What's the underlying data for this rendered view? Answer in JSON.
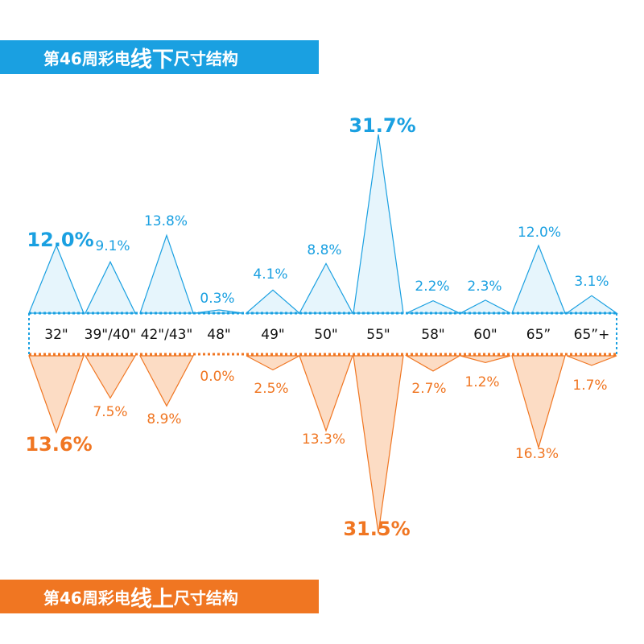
{
  "banners": {
    "online": {
      "prefix": "第46周彩电",
      "emph": "线下",
      "suffix": "尺寸结构"
    },
    "offline": {
      "prefix": "第46周彩电",
      "emph": "线上",
      "suffix": "尺寸结构"
    }
  },
  "colors": {
    "blue": "#1aa0e1",
    "blue_fill": "#e6f5fc",
    "orange": "#f07622",
    "orange_fill": "#fcdcc4"
  },
  "chart_data": {
    "type": "bar",
    "categories": [
      "32\"",
      "39\"/40\"",
      "42\"/43\"",
      "48\"",
      "49\"",
      "50\"",
      "55\"",
      "58\"",
      "60\"",
      "65”",
      "65”+"
    ],
    "series": [
      {
        "name": "线下",
        "values": [
          12.0,
          9.1,
          13.8,
          0.3,
          4.1,
          8.8,
          31.7,
          2.2,
          2.3,
          12.0,
          3.1
        ],
        "labels": [
          "12.0%",
          "9.1%",
          "13.8%",
          "0.3%",
          "4.1%",
          "8.8%",
          "31.7%",
          "2.2%",
          "2.3%",
          "12.0%",
          "3.1%"
        ]
      },
      {
        "name": "线上",
        "values": [
          13.6,
          7.5,
          8.9,
          0.0,
          2.5,
          13.3,
          31.5,
          2.7,
          1.2,
          16.3,
          1.7
        ],
        "labels": [
          "13.6%",
          "7.5%",
          "8.9%",
          "0.0%",
          "2.5%",
          "13.3%",
          "31.5%",
          "2.7%",
          "1.2%",
          "16.3%",
          "1.7%"
        ]
      }
    ],
    "ylim": [
      0,
      35
    ],
    "grid": false
  }
}
